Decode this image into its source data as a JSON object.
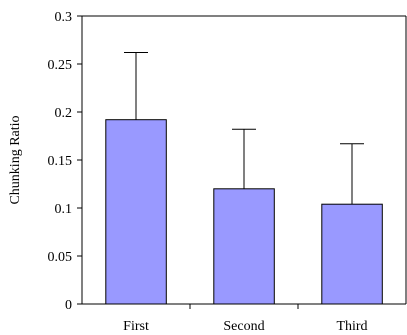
{
  "chart_data": {
    "type": "bar",
    "title": "",
    "xlabel": "",
    "ylabel": "Chunking Ratio",
    "categories": [
      "First",
      "Second",
      "Third"
    ],
    "values": [
      0.192,
      0.12,
      0.104
    ],
    "error_upper": [
      0.262,
      0.182,
      0.167
    ],
    "ylim": [
      0,
      0.3
    ],
    "yticks": [
      0,
      0.05,
      0.1,
      0.15,
      0.2,
      0.25,
      0.3
    ],
    "ytick_labels": [
      "0",
      "0.05",
      "0.1",
      "0.15",
      "0.2",
      "0.25",
      "0.3"
    ],
    "grid": false,
    "legend": "none",
    "colors": {
      "bar_fill": "#9999ff",
      "bar_stroke": "#000000",
      "axis": "#000000",
      "error_bar": "#000000"
    }
  }
}
